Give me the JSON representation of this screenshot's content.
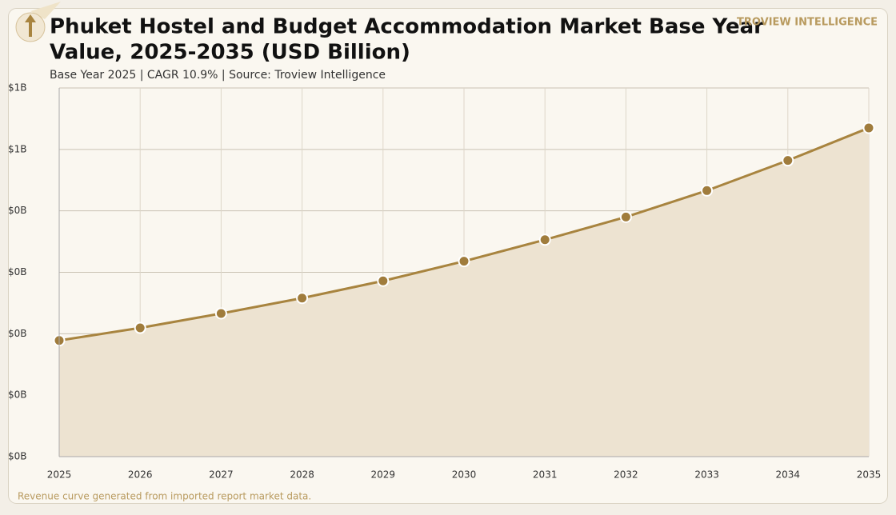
{
  "chart_data": {
    "type": "line",
    "title": [
      "Phuket Hostel and Budget Accommodation Market Base Year",
      "Value, 2025-2035 (USD Billion)"
    ],
    "subtitle": "Base Year 2025 | CAGR 10.9% | Source: Troview Intelligence",
    "brand": "TROVIEW INTELLIGENCE",
    "footnote": "Revenue curve generated from imported report market data.",
    "x": [
      2025,
      2026,
      2027,
      2028,
      2029,
      2030,
      2031,
      2032,
      2033,
      2034,
      2035
    ],
    "values": [
      0.189,
      0.2095,
      0.233,
      0.258,
      0.286,
      0.318,
      0.353,
      0.39,
      0.433,
      0.482,
      0.535
    ],
    "color": "#a8843f",
    "area_color": "#ede3d1",
    "xlim": [
      2025,
      2035
    ],
    "xticks": [
      2025,
      2026,
      2027,
      2028,
      2029,
      2030,
      2031,
      2032,
      2033,
      2034,
      2035
    ],
    "ylim": [
      0,
      0.6
    ],
    "yticks": [
      {
        "value": 0,
        "label": "$0B"
      },
      {
        "value": 0.1,
        "label": "$0B"
      },
      {
        "value": 0.2,
        "label": "$0B"
      },
      {
        "value": 0.3,
        "label": "$0B"
      },
      {
        "value": 0.4,
        "label": "$0B"
      },
      {
        "value": 0.5,
        "label": "$1B"
      },
      {
        "value": 0.6,
        "label": "$1B"
      }
    ],
    "grid": true
  }
}
